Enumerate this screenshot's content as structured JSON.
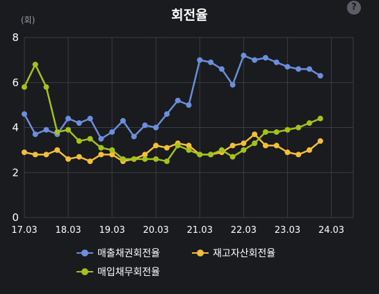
{
  "header": {
    "title": "회전율",
    "help_icon": "question-mark-icon",
    "unit": "(회)"
  },
  "chart_data": {
    "type": "line",
    "title": "회전율",
    "ylabel": "(회)",
    "ylim": [
      0,
      8
    ],
    "yticks": [
      0,
      2,
      4,
      6,
      8
    ],
    "x_range": [
      "17.03",
      "24.09"
    ],
    "xtick_labels": [
      "17.03",
      "18.03",
      "19.03",
      "20.03",
      "21.03",
      "22.03",
      "23.03",
      "24.03"
    ],
    "grid": true,
    "legend_position": "bottom",
    "x": [
      "17.03",
      "17.06",
      "17.09",
      "17.12",
      "18.03",
      "18.06",
      "18.09",
      "18.12",
      "19.03",
      "19.06",
      "19.09",
      "19.12",
      "20.03",
      "20.06",
      "20.09",
      "20.12",
      "21.03",
      "21.06",
      "21.09",
      "21.12",
      "22.03",
      "22.06",
      "22.09",
      "22.12",
      "23.03",
      "23.06",
      "23.09",
      "23.12"
    ],
    "series": [
      {
        "name": "매출채권회전율",
        "color": "#6b8fdc",
        "values": [
          4.6,
          3.7,
          3.9,
          3.7,
          4.4,
          4.2,
          4.4,
          3.5,
          3.8,
          4.3,
          3.6,
          4.1,
          4.0,
          4.6,
          5.2,
          5.0,
          7.0,
          6.9,
          6.6,
          5.9,
          7.2,
          7.0,
          7.1,
          6.9,
          6.7,
          6.6,
          6.6,
          6.3
        ]
      },
      {
        "name": "재고자산회전율",
        "color": "#f4be3b",
        "values": [
          2.9,
          2.8,
          2.8,
          3.0,
          2.6,
          2.7,
          2.5,
          2.8,
          2.8,
          2.5,
          2.6,
          2.8,
          3.2,
          3.1,
          3.3,
          3.2,
          2.8,
          2.8,
          2.9,
          3.2,
          3.3,
          3.7,
          3.2,
          3.2,
          2.9,
          2.8,
          3.0,
          3.4
        ]
      },
      {
        "name": "매입채무회전율",
        "color": "#a4c21c",
        "values": [
          5.8,
          6.8,
          5.8,
          3.8,
          3.9,
          3.4,
          3.5,
          3.1,
          3.0,
          2.6,
          2.6,
          2.6,
          2.6,
          2.5,
          3.2,
          3.0,
          2.8,
          2.8,
          3.0,
          2.7,
          3.0,
          3.3,
          3.8,
          3.8,
          3.9,
          4.0,
          4.2,
          4.4
        ]
      }
    ]
  },
  "legend": [
    {
      "label": "매출채권회전율",
      "color": "#6b8fdc"
    },
    {
      "label": "재고자산회전율",
      "color": "#f4be3b"
    },
    {
      "label": "매입채무회전율",
      "color": "#a4c21c"
    }
  ]
}
